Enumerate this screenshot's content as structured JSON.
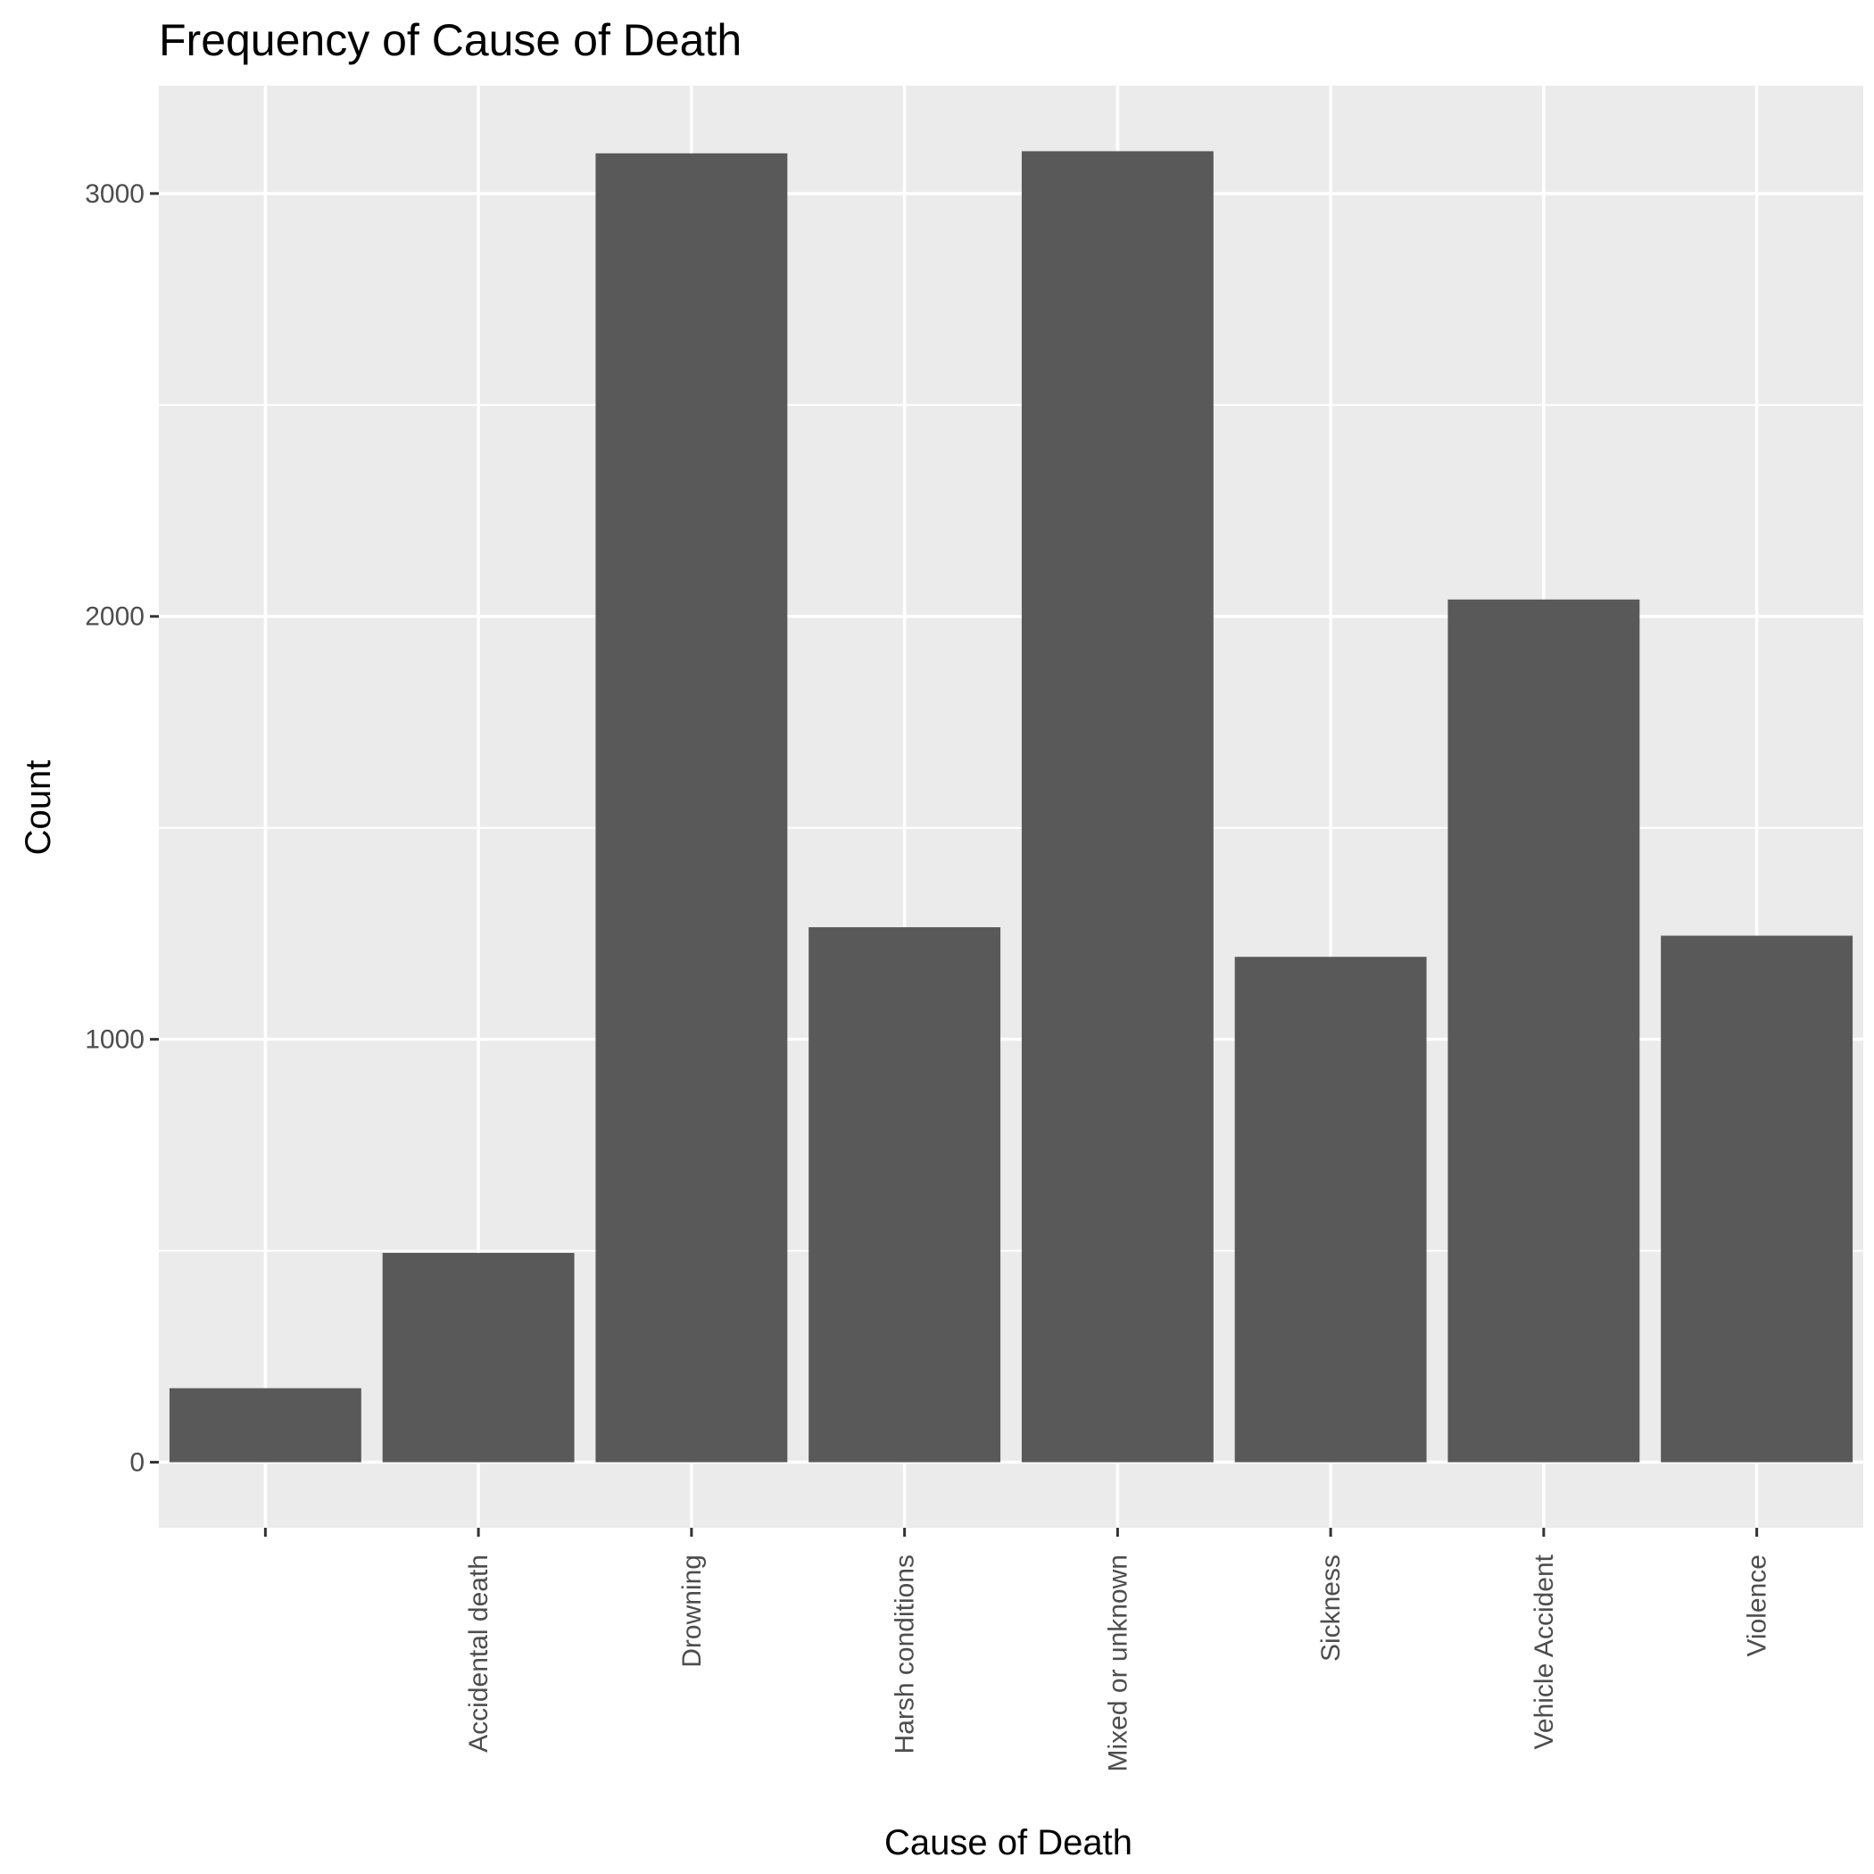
{
  "chart_data": {
    "type": "bar",
    "title": "Frequency of Cause of Death",
    "xlabel": "Cause of Death",
    "ylabel": "Count",
    "categories": [
      "",
      "Accidental death",
      "Drowning",
      "Harsh conditions",
      "Mixed or unknown",
      "Sickness",
      "Vehicle Accident",
      "Violence"
    ],
    "values": [
      175,
      495,
      3095,
      1265,
      3100,
      1195,
      2040,
      1245
    ],
    "yticks": [
      0,
      1000,
      2000,
      3000
    ],
    "ylim": [
      -155,
      3255
    ],
    "grid": true,
    "legend": "none",
    "colors": {
      "bar": "#595959",
      "panel": "#ebebeb",
      "grid": "#ffffff"
    }
  }
}
